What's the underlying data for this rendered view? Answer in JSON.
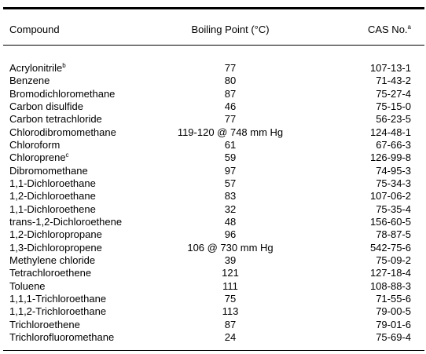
{
  "table": {
    "header": {
      "compound": "Compound",
      "boiling_point": "Boiling Point (°C)",
      "cas": "CAS No.",
      "cas_note": "a"
    },
    "rows": [
      {
        "compound": "Acrylonitrile",
        "note": "b",
        "boiling_point": 77,
        "cas": "107-13-1"
      },
      {
        "compound": "Benzene",
        "boiling_point": 80,
        "cas": "71-43-2"
      },
      {
        "compound": "Bromodichloromethane",
        "boiling_point": 87,
        "cas": "75-27-4"
      },
      {
        "compound": "Carbon disulfide",
        "boiling_point": 46,
        "cas": "75-15-0"
      },
      {
        "compound": "Carbon tetrachloride",
        "boiling_point": 77,
        "cas": "56-23-5"
      },
      {
        "compound": "Chlorodibromomethane",
        "boiling_point": "119-120 @ 748 mm Hg",
        "cas": "124-48-1"
      },
      {
        "compound": "Chloroform",
        "boiling_point": 61,
        "cas": "67-66-3"
      },
      {
        "compound": "Chloroprene",
        "note": "c",
        "boiling_point": 59,
        "cas": "126-99-8"
      },
      {
        "compound": "Dibromomethane",
        "boiling_point": 97,
        "cas": "74-95-3"
      },
      {
        "compound": "1,1-Dichloroethane",
        "boiling_point": 57,
        "cas": "75-34-3"
      },
      {
        "compound": "1,2-Dichloroethane",
        "boiling_point": 83,
        "cas": "107-06-2"
      },
      {
        "compound": "1,1-Dichloroethene",
        "boiling_point": 32,
        "cas": "75-35-4"
      },
      {
        "compound": "trans-1,2-Dichloroethene",
        "boiling_point": 48,
        "cas": "156-60-5"
      },
      {
        "compound": "1,2-Dichloropropane",
        "boiling_point": 96,
        "cas": "78-87-5"
      },
      {
        "compound": "1,3-Dichloropropene",
        "boiling_point": "106 @ 730 mm Hg",
        "cas": "542-75-6"
      },
      {
        "compound": "Methylene chloride",
        "boiling_point": 39,
        "cas": "75-09-2"
      },
      {
        "compound": "Tetrachloroethene",
        "boiling_point": 121,
        "cas": "127-18-4"
      },
      {
        "compound": "Toluene",
        "boiling_point": 111,
        "cas": "108-88-3"
      },
      {
        "compound": "1,1,1-Trichloroethane",
        "boiling_point": 75,
        "cas": "71-55-6"
      },
      {
        "compound": "1,1,2-Trichloroethane",
        "boiling_point": 113,
        "cas": "79-00-5"
      },
      {
        "compound": "Trichloroethene",
        "boiling_point": 87,
        "cas": "79-01-6"
      },
      {
        "compound": "Trichlorofluoromethane",
        "boiling_point": 24,
        "cas": "75-69-4"
      }
    ]
  }
}
